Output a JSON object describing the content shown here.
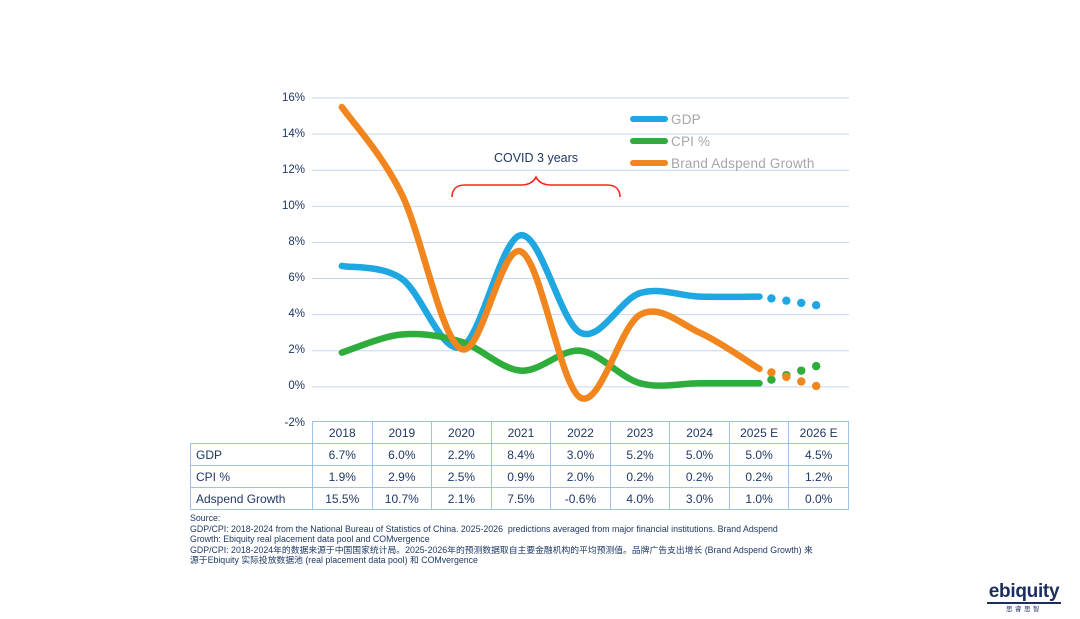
{
  "chart_data": {
    "type": "line",
    "title": "",
    "xlabel": "",
    "ylabel": "",
    "categories": [
      "2018",
      "2019",
      "2020",
      "2021",
      "2022",
      "2023",
      "2024",
      "2025 E",
      "2026 E"
    ],
    "series": [
      {
        "name": "GDP",
        "color": "#1EA7E1",
        "values": [
          6.7,
          6.0,
          2.2,
          8.4,
          3.0,
          5.2,
          5.0,
          5.0,
          4.5
        ],
        "forecast_from_index": 7
      },
      {
        "name": "CPI %",
        "color": "#2EAD3C",
        "values": [
          1.9,
          2.9,
          2.5,
          0.9,
          2.0,
          0.2,
          0.2,
          0.2,
          1.2
        ],
        "forecast_from_index": 7
      },
      {
        "name": "Brand Adspend Growth",
        "color": "#F0861D",
        "values": [
          15.5,
          10.7,
          2.1,
          7.5,
          -0.6,
          4.0,
          3.0,
          1.0,
          0.0
        ],
        "forecast_from_index": 7
      }
    ],
    "ylim": [
      -2,
      16
    ],
    "ytick_step": 2,
    "ytick_labels": [
      "16%",
      "14%",
      "12%",
      "10%",
      "8%",
      "6%",
      "4%",
      "2%",
      "0%",
      "-2%"
    ],
    "grid": true,
    "legend_position": "top-right",
    "forecast_style": "dotted",
    "forecast_categories": [
      "2025 E",
      "2026 E"
    ],
    "annotation": {
      "text": "COVID 3 years",
      "brace_color": "#F8261A",
      "span": "2020-2022"
    }
  },
  "table": {
    "column_headers": [
      "2018",
      "2019",
      "2020",
      "2021",
      "2022",
      "2023",
      "2024",
      "2025 E",
      "2026 E"
    ],
    "rows": [
      {
        "label": "GDP",
        "cells": [
          "6.7%",
          "6.0%",
          "2.2%",
          "8.4%",
          "3.0%",
          "5.2%",
          "5.0%",
          "5.0%",
          "4.5%"
        ]
      },
      {
        "label": "CPI %",
        "cells": [
          "1.9%",
          "2.9%",
          "2.5%",
          "0.9%",
          "2.0%",
          "0.2%",
          "0.2%",
          "0.2%",
          "1.2%"
        ]
      },
      {
        "label": "Adspend Growth",
        "cells": [
          "15.5%",
          "10.7%",
          "2.1%",
          "7.5%",
          "-0.6%",
          "4.0%",
          "3.0%",
          "1.0%",
          "0.0%"
        ]
      }
    ]
  },
  "source": {
    "lines": [
      "Source:",
      "GDP/CPI: 2018-2024 from the National Bureau of Statistics of China. 2025-2026  predictions averaged from major financial institutions. Brand Adspend",
      "Growth: Ebiquity real placement data pool and COMvergence",
      "GDP/CPI: 2018-2024年的数据来源于中国国家统计局。2025-2026年的预测数据取自主要金融机构的平均预测值。品牌广告支出增长 (Brand Adspend Growth) 来",
      "源于Ebiquity 实际投放数据池 (real placement data pool) 和 COMvergence"
    ]
  },
  "logo": {
    "wordmark": "ebiquity",
    "subtext": "思睿思智"
  },
  "colors": {
    "text_navy": "#1F3864",
    "gridline": "#C7D7F0",
    "table_border": "#9DC3E6",
    "legend_text": "#A6A6A6",
    "background": "#FFFFFF"
  }
}
